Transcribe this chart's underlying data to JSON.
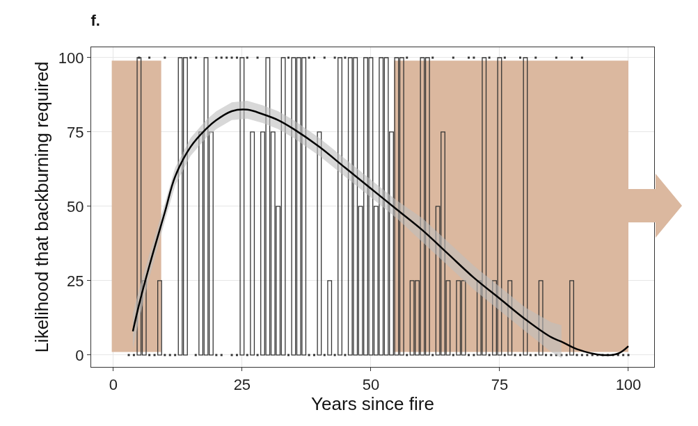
{
  "chart_data": {
    "type": "bar",
    "title": "f.",
    "xlabel": "Years since fire",
    "ylabel": "Likelihood that backburning required",
    "xlim": [
      -4.3,
      105
    ],
    "xticks": [
      0,
      25,
      50,
      75,
      100
    ],
    "ylim": [
      -4,
      103.5
    ],
    "yticks": [
      0,
      25,
      50,
      75,
      100
    ],
    "grid": true,
    "bands": [
      {
        "axis": "x",
        "from": -0.3,
        "to": 9.3,
        "color": "#dbb89f"
      },
      {
        "axis": "x",
        "from": 54.5,
        "to": 100,
        "color": "#dbb89f"
      }
    ],
    "series": [
      {
        "color": "#333333",
        "x": [
          5,
          6,
          9,
          13,
          14,
          17,
          18,
          19,
          25,
          27,
          29,
          30,
          31,
          32,
          33,
          35,
          36,
          37,
          40,
          42,
          44,
          46,
          47,
          48,
          49,
          50,
          51,
          52,
          53,
          54,
          55,
          56,
          58,
          59,
          60,
          61,
          63,
          64,
          65,
          67,
          68,
          71,
          72,
          74,
          75,
          77,
          80,
          83,
          89
        ],
        "values": [
          100,
          25,
          25,
          100,
          100,
          75,
          100,
          75,
          100,
          75,
          75,
          100,
          75,
          50,
          100,
          100,
          100,
          100,
          75,
          25,
          100,
          100,
          100,
          50,
          100,
          100,
          50,
          100,
          100,
          75,
          100,
          100,
          25,
          25,
          100,
          100,
          50,
          75,
          25,
          25,
          25,
          25,
          100,
          25,
          100,
          25,
          100,
          25,
          25
        ]
      },
      {
        "type": "scatter",
        "color": "#333333",
        "marker": "square",
        "x": [
          5,
          7,
          10,
          15,
          16,
          20,
          21,
          22,
          23,
          24,
          26,
          28,
          34,
          38,
          39,
          41,
          43,
          45,
          57,
          62,
          66,
          69,
          70,
          73,
          76,
          79,
          82,
          86,
          89,
          91,
          3,
          4,
          7,
          8,
          10,
          11,
          12,
          16,
          20,
          21,
          23,
          24,
          26,
          28,
          34,
          38,
          39,
          41,
          43,
          45,
          57,
          62,
          66,
          69,
          70,
          73,
          76,
          78,
          79,
          81,
          82,
          84,
          85,
          86,
          87,
          88,
          90,
          91,
          92,
          93,
          94,
          95,
          96,
          97,
          98,
          99,
          100
        ],
        "values": [
          100,
          100,
          100,
          100,
          100,
          100,
          100,
          100,
          100,
          100,
          100,
          100,
          100,
          100,
          100,
          100,
          100,
          100,
          100,
          100,
          100,
          100,
          100,
          100,
          100,
          100,
          100,
          100,
          100,
          100,
          0,
          0,
          0,
          0,
          0,
          0,
          0,
          0,
          0,
          0,
          0,
          0,
          0,
          0,
          0,
          0,
          0,
          0,
          0,
          0,
          0,
          0,
          0,
          0,
          0,
          0,
          0,
          0,
          0,
          0,
          0,
          0,
          0,
          0,
          0,
          0,
          0,
          0,
          0,
          0,
          0,
          0,
          0,
          0,
          0,
          0,
          0
        ]
      },
      {
        "type": "line",
        "color": "#000000",
        "line_style": "solid",
        "x": [
          3.8,
          5,
          7,
          10,
          12,
          15,
          18,
          20,
          23,
          26,
          29,
          32,
          35,
          40,
          45,
          50,
          55,
          60,
          65,
          70,
          75,
          80,
          85,
          87,
          90,
          95,
          98,
          100
        ],
        "values": [
          8,
          17,
          30,
          48,
          60,
          70,
          76,
          79,
          82,
          82.5,
          81,
          79,
          76,
          70,
          63,
          56,
          49,
          42,
          34,
          26,
          19,
          12,
          6,
          4.5,
          2,
          0,
          0.5,
          3
        ],
        "lower": [
          2,
          12,
          26,
          45,
          57,
          67,
          73,
          76,
          79,
          79.5,
          78,
          76,
          73,
          67,
          60,
          53,
          46,
          38,
          30,
          22,
          15,
          8,
          1,
          -1,
          null,
          null,
          null,
          null
        ],
        "upper": [
          14,
          22,
          34,
          51,
          63,
          73,
          79,
          82,
          85,
          85.5,
          84,
          82,
          79,
          73,
          66,
          59,
          52,
          46,
          38,
          30,
          23,
          16,
          11,
          10,
          null,
          null,
          null,
          null
        ]
      }
    ]
  }
}
